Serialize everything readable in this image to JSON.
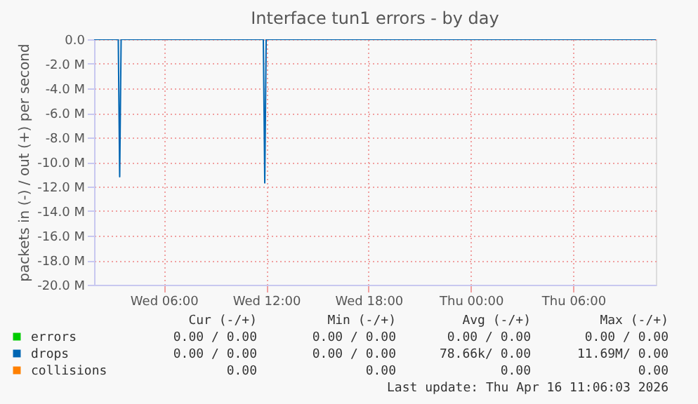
{
  "chart_data": {
    "type": "line",
    "title": "Interface tun1 errors - by day",
    "ylabel": "packets in (-) / out (+) per second",
    "xlim": [
      "2026-04-15T01:55",
      "2026-04-16T10:50"
    ],
    "xticks": [
      {
        "value": "2026-04-15T06:00",
        "label": "Wed 06:00"
      },
      {
        "value": "2026-04-15T12:00",
        "label": "Wed 12:00"
      },
      {
        "value": "2026-04-15T18:00",
        "label": "Wed 18:00"
      },
      {
        "value": "2026-04-16T00:00",
        "label": "Thu 00:00"
      },
      {
        "value": "2026-04-16T06:00",
        "label": "Thu 06:00"
      }
    ],
    "ylim": [
      -20,
      0
    ],
    "yticks": [
      {
        "value": -20,
        "label": "-20.0 M"
      },
      {
        "value": -18,
        "label": "-18.0 M"
      },
      {
        "value": -16,
        "label": "-16.0 M"
      },
      {
        "value": -14,
        "label": "-14.0 M"
      },
      {
        "value": -12,
        "label": "-12.0 M"
      },
      {
        "value": -10,
        "label": "-10.0 M"
      },
      {
        "value": -8,
        "label": "-8.0 M"
      },
      {
        "value": -6,
        "label": "-6.0 M"
      },
      {
        "value": -4,
        "label": "-4.0 M"
      },
      {
        "value": -2,
        "label": "-2.0 M"
      },
      {
        "value": 0,
        "label": "0.0"
      }
    ],
    "grid": true,
    "legend": "bottom",
    "marker": "none",
    "line_style": "solid",
    "series": [
      {
        "name": "errors",
        "color": "#00cc00"
      },
      {
        "name": "drops",
        "color": "#0066b3",
        "x": [
          "2026-04-15T01:55",
          "2026-04-15T03:20",
          "2026-04-15T03:25",
          "2026-04-15T03:30",
          "2026-04-15T11:50",
          "2026-04-15T11:55",
          "2026-04-15T12:00",
          "2026-04-16T10:50"
        ],
        "values": [
          0,
          0,
          -11.2,
          0,
          0,
          -11.7,
          0,
          0
        ]
      },
      {
        "name": "collisions",
        "color": "#ff8000"
      }
    ],
    "annotations": [
      "Cur (-/+)",
      "Min (-/+)",
      "Avg (-/+)",
      "Max (-/+)",
      "0.00 / 0.00",
      "0.00 / 0.00",
      "0.00 / 0.00",
      "0.00 / 0.00",
      "0.00 / 0.00",
      "0.00 / 0.00",
      "78.66k/ 0.00",
      "11.69M/ 0.00",
      "0.00",
      "0.00",
      "0.00",
      "0.00",
      "Last update: Thu Apr 16 11:06:03 2026"
    ]
  }
}
